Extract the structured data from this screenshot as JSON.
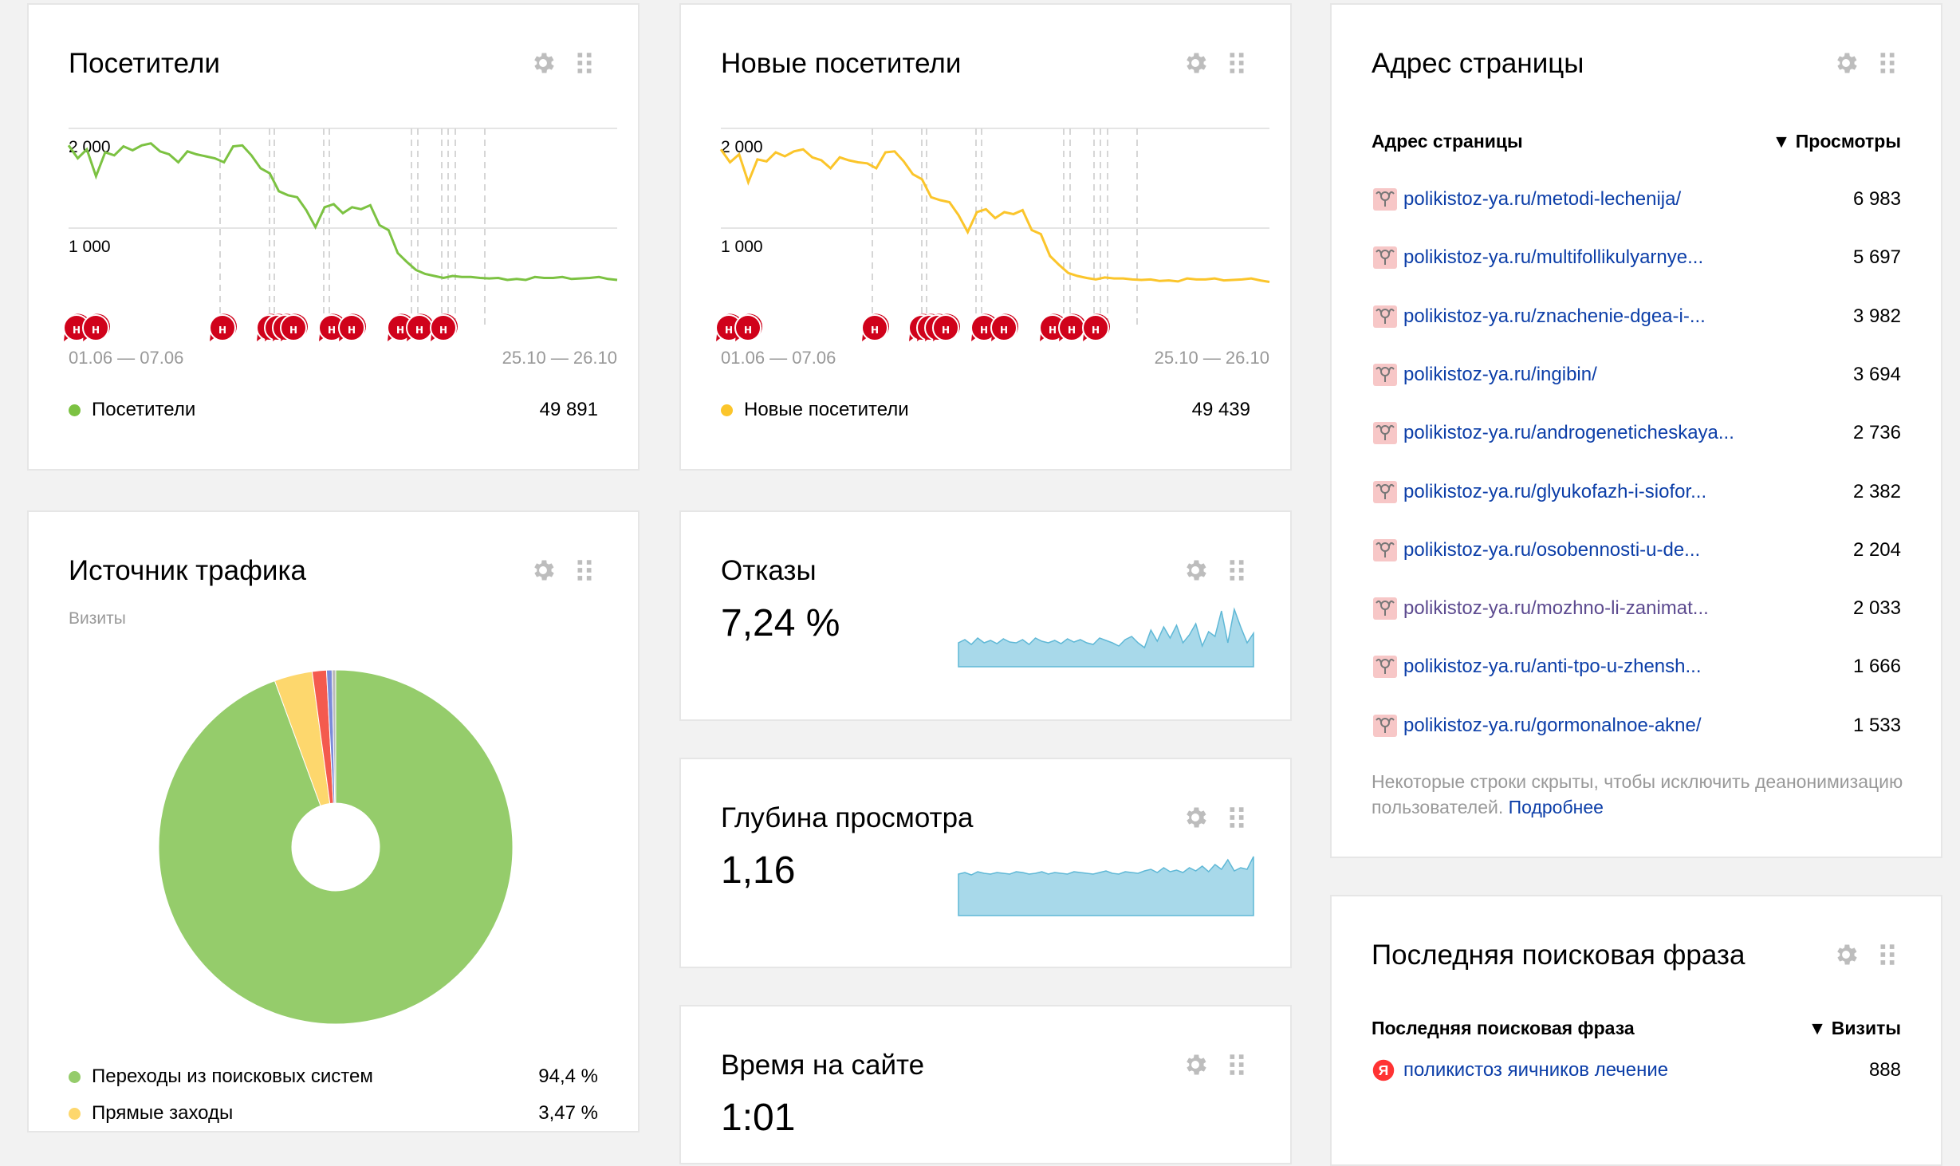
{
  "visitors": {
    "title": "Посетители",
    "y_labels": [
      "2 000",
      "1 000"
    ],
    "date_start": "01.06 — 07.06",
    "date_end": "25.10 — 26.10",
    "legend": "Посетители",
    "total": "49 891",
    "color": "#7cc242"
  },
  "new_visitors": {
    "title": "Новые посетители",
    "y_labels": [
      "2 000",
      "1 000"
    ],
    "date_start": "01.06 — 07.06",
    "date_end": "25.10 — 26.10",
    "legend": "Новые посетители",
    "total": "49 439",
    "color": "#fbc52b"
  },
  "page_address": {
    "title": "Адрес страницы",
    "col_name": "Адрес страницы",
    "col_value": "▼ Просмотры",
    "rows": [
      {
        "url": "polikistoz-ya.ru/metodi-lechenija/",
        "views": "6 983"
      },
      {
        "url": "polikistoz-ya.ru/multifollikulyarnye...",
        "views": "5 697"
      },
      {
        "url": "polikistoz-ya.ru/znachenie-dgea-i-...",
        "views": "3 982"
      },
      {
        "url": "polikistoz-ya.ru/ingibin/",
        "views": "3 694"
      },
      {
        "url": "polikistoz-ya.ru/androgeneticheskaya...",
        "views": "2 736"
      },
      {
        "url": "polikistoz-ya.ru/glyukofazh-i-siofor...",
        "views": "2 382"
      },
      {
        "url": "polikistoz-ya.ru/osobennosti-u-de...",
        "views": "2 204"
      },
      {
        "url": "polikistoz-ya.ru/mozhno-li-zanimat...",
        "views": "2 033"
      },
      {
        "url": "polikistoz-ya.ru/anti-tpo-u-zhensh...",
        "views": "1 666"
      },
      {
        "url": "polikistoz-ya.ru/gormonalnoe-akne/",
        "views": "1 533"
      }
    ],
    "note": "Некоторые строки скрыты, чтобы исключить деанонимизацию пользователей.",
    "note_link": "Подробнее"
  },
  "traffic_source": {
    "title": "Источник трафика",
    "subtitle": "Визиты",
    "items": [
      {
        "label": "Переходы из поисковых систем",
        "value": "94,4 %",
        "color": "#95cc6b"
      },
      {
        "label": "Прямые заходы",
        "value": "3,47 %",
        "color": "#fdd76d"
      }
    ],
    "pie": [
      {
        "share": 94.4,
        "color": "#95cc6b"
      },
      {
        "share": 3.47,
        "color": "#fdd76d"
      },
      {
        "share": 1.3,
        "color": "#f45a4e"
      },
      {
        "share": 0.5,
        "color": "#7b8bd9"
      },
      {
        "share": 0.33,
        "color": "#bbbbbb"
      }
    ]
  },
  "bounce": {
    "title": "Отказы",
    "value": "7,24 %"
  },
  "depth": {
    "title": "Глубина просмотра",
    "value": "1,16"
  },
  "time_on_site": {
    "title": "Время на сайте",
    "value": "1:01"
  },
  "search_phrase": {
    "title": "Последняя поисковая фраза",
    "col_name": "Последняя поисковая фраза",
    "col_value": "▼ Визиты",
    "rows": [
      {
        "phrase": "поликистоз яичников лечение",
        "visits": "888"
      }
    ]
  },
  "icons": {
    "settings": "gear-icon",
    "drag": "grip-icon",
    "annotation": "annotation-marker-icon",
    "favicon": "site-favicon-icon",
    "yandex": "yandex-logo-icon"
  },
  "sparkline_color": "#a8d9ea"
}
